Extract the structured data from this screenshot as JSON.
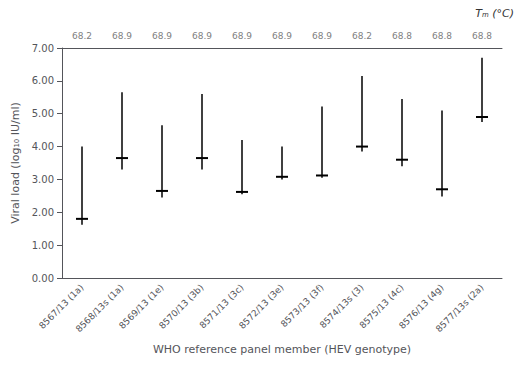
{
  "chart_data": {
    "type": "range",
    "categories": [
      "8567/13 (1a)",
      "8568/13s (1a)",
      "8569/13 (1e)",
      "8570/13 (3b)",
      "8571/13 (3c)",
      "8572/13 (3e)",
      "8573/13 (3f)",
      "8574/13s (3)",
      "8575/13 (4c)",
      "8576/13 (4g)",
      "8577/13s (2a)"
    ],
    "values": [
      1.8,
      3.65,
      2.65,
      3.65,
      2.62,
      3.08,
      3.12,
      4.0,
      3.6,
      2.7,
      4.9
    ],
    "lower": [
      1.62,
      3.3,
      2.45,
      3.3,
      2.55,
      3.0,
      3.05,
      3.85,
      3.4,
      2.48,
      4.75
    ],
    "upper": [
      4.0,
      5.65,
      4.65,
      5.6,
      4.2,
      4.0,
      5.22,
      6.15,
      5.45,
      5.1,
      6.7
    ],
    "color": "#000000",
    "xlabel": "WHO reference panel member (HEV genotype)",
    "ylabel": "Viral load (log₁₀ IU/ml)",
    "ylim": [
      0.0,
      7.0
    ],
    "yticks": [
      {
        "value": 0.0,
        "label": "0.00"
      },
      {
        "value": 1.0,
        "label": "1.00"
      },
      {
        "value": 2.0,
        "label": "2.00"
      },
      {
        "value": 3.0,
        "label": "3.00"
      },
      {
        "value": 4.0,
        "label": "4.00"
      },
      {
        "value": 5.0,
        "label": "5.00"
      },
      {
        "value": 6.0,
        "label": "6.00"
      },
      {
        "value": 7.0,
        "label": "7.00"
      }
    ],
    "grid": false,
    "top_axis": {
      "labels": [
        "68.2",
        "68.9",
        "68.9",
        "68.9",
        "68.9",
        "68.9",
        "68.9",
        "68.2",
        "68.8",
        "68.8",
        "68.8"
      ],
      "color": "#808080"
    },
    "annotation": "Tₘ (°C)"
  }
}
